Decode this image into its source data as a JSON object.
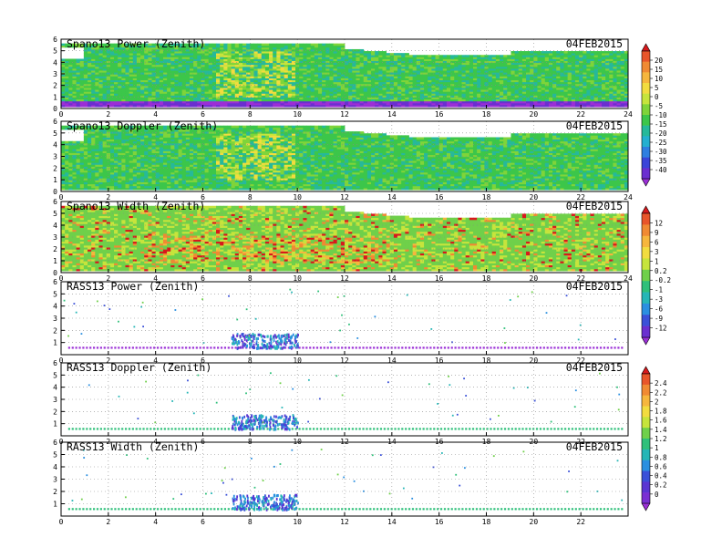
{
  "chart_data": {
    "type": "heatmap",
    "date": "04FEB2015",
    "x_range": [
      0,
      24
    ],
    "y_range": [
      0,
      6
    ],
    "x_ticks": [
      "0",
      "2",
      "4",
      "6",
      "8",
      "10",
      "12",
      "14",
      "16",
      "18",
      "20",
      "22",
      "24"
    ],
    "x_ticks_rass": [
      "0",
      "2",
      "4",
      "6",
      "8",
      "10",
      "12",
      "14",
      "16",
      "18",
      "20",
      "22"
    ],
    "y_ticks": [
      "0",
      "1",
      "2",
      "3",
      "4",
      "5",
      "6"
    ],
    "y_ticks_rass": [
      "1",
      "2",
      "3",
      "4",
      "5",
      "6"
    ],
    "panels": [
      {
        "title": "Spano13 Power (Zenith)",
        "kind": "spano",
        "colorbar": 0
      },
      {
        "title": "Spano13 Doppler (Zenith)",
        "kind": "spano",
        "colorbar": 0
      },
      {
        "title": "Spano13 Width (Zenith)",
        "kind": "spano-width",
        "colorbar": 1
      },
      {
        "title": "RASS13 Power (Zenith)",
        "kind": "rass",
        "colorbar": 1
      },
      {
        "title": "RASS13 Doppler (Zenith)",
        "kind": "rass",
        "colorbar": 2
      },
      {
        "title": "RASS13 Width (Zenith)",
        "kind": "rass",
        "colorbar": 2
      }
    ],
    "colorbars": [
      {
        "labels": [
          "20",
          "15",
          "10",
          "5",
          "0",
          "-5",
          "-10",
          "-15",
          "-20",
          "-25",
          "-30",
          "-35",
          "-40"
        ],
        "colors": [
          "#d7191c",
          "#e8552a",
          "#f08a33",
          "#f6b63d",
          "#f2dc3f",
          "#c6e43c",
          "#7fd43a",
          "#3cc64a",
          "#26b99a",
          "#24b0d0",
          "#2f7fe0",
          "#3a45d8",
          "#6a2fd0",
          "#9b2fd6"
        ]
      },
      {
        "labels": [
          "12",
          "9",
          "6",
          "3",
          "1",
          "0.2",
          "-0.2",
          "-1",
          "-3",
          "-6",
          "-9",
          "-12"
        ],
        "colors": [
          "#d7191c",
          "#e8552a",
          "#f08a33",
          "#f6b63d",
          "#f2dc3f",
          "#c6e43c",
          "#6fd04a",
          "#2fc07a",
          "#26b6b6",
          "#2a8fe0",
          "#3a50d8",
          "#6a2fd0",
          "#9b2fd6"
        ]
      },
      {
        "labels": [
          "2.4",
          "2.2",
          "2",
          "1.8",
          "1.6",
          "1.4",
          "1.2",
          "1",
          "0.8",
          "0.6",
          "0.4",
          "0.2",
          "0"
        ],
        "colors": [
          "#d7191c",
          "#e8552a",
          "#f08a33",
          "#f6b63d",
          "#f2dc3f",
          "#c6e43c",
          "#6fd04a",
          "#2fc07a",
          "#26b6b6",
          "#2a8fe0",
          "#3a50d8",
          "#5a35d2",
          "#7a2fd3",
          "#9b2fd6"
        ]
      }
    ]
  }
}
